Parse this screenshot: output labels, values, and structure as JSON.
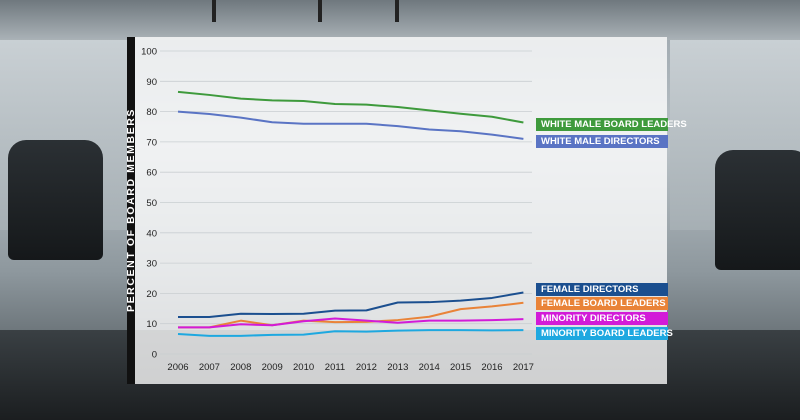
{
  "chart_data": {
    "type": "line",
    "title": "",
    "xlabel": "",
    "ylabel": "PERCENT OF BOARD MEMBERS",
    "x": [
      2006,
      2007,
      2008,
      2009,
      2010,
      2011,
      2012,
      2013,
      2014,
      2015,
      2016,
      2017
    ],
    "x_tick_labels": [
      "2006",
      "2007",
      "2008",
      "2009",
      "2010",
      "2011",
      "2012",
      "2013",
      "2014",
      "2015",
      "2016",
      "2017"
    ],
    "ylim": [
      0,
      100
    ],
    "y_ticks": [
      0,
      10,
      20,
      30,
      40,
      50,
      60,
      70,
      80,
      90,
      100
    ],
    "y_tick_labels": [
      "0",
      "10",
      "20",
      "30",
      "40",
      "50",
      "60",
      "70",
      "80",
      "90",
      "100"
    ],
    "grid": true,
    "legend_placement": "right",
    "series": [
      {
        "name": "WHITE MALE BOARD LEADERS",
        "color": "#3e9a3c",
        "values": [
          86.5,
          85.5,
          84.3,
          83.7,
          83.5,
          82.5,
          82.3,
          81.5,
          80.4,
          79.3,
          78.3,
          76.4
        ]
      },
      {
        "name": "WHITE MALE DIRECTORS",
        "color": "#5a74c4",
        "values": [
          80,
          79.2,
          78,
          76.5,
          76,
          76,
          76,
          75.2,
          74.1,
          73.5,
          72.4,
          71
        ]
      },
      {
        "name": "FEMALE DIRECTORS",
        "color": "#1b4f8f",
        "values": [
          12.2,
          12.2,
          13.3,
          13.2,
          13.3,
          14.3,
          14.4,
          17,
          17.1,
          17.6,
          18.5,
          20.3
        ]
      },
      {
        "name": "FEMALE BOARD LEADERS",
        "color": "#e98338",
        "values": [
          8.8,
          8.8,
          11,
          9.5,
          11,
          10.5,
          10.6,
          11.2,
          12.3,
          14.8,
          15.7,
          16.9
        ]
      },
      {
        "name": "MINORITY DIRECTORS",
        "color": "#d21bd8",
        "values": [
          8.8,
          8.8,
          9.8,
          9.5,
          10.8,
          11.7,
          11,
          10.3,
          11,
          11,
          11.2,
          11.5
        ]
      },
      {
        "name": "MINORITY BOARD LEADERS",
        "color": "#1ea8e0",
        "values": [
          6.6,
          6,
          6,
          6.3,
          6.4,
          7.5,
          7.4,
          7.7,
          7.9,
          7.9,
          7.8,
          7.9
        ]
      }
    ]
  }
}
